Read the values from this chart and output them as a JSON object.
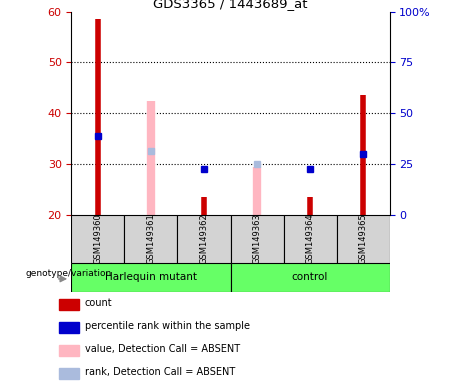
{
  "title": "GDS3365 / 1443689_at",
  "samples": [
    "GSM149360",
    "GSM149361",
    "GSM149362",
    "GSM149363",
    "GSM149364",
    "GSM149365"
  ],
  "ylim_left": [
    20,
    60
  ],
  "ylim_right": [
    0,
    100
  ],
  "yticks_left": [
    20,
    30,
    40,
    50,
    60
  ],
  "yticks_right": [
    0,
    25,
    50,
    75,
    100
  ],
  "yticklabels_right": [
    "0",
    "25",
    "50",
    "75",
    "100%"
  ],
  "count_values": [
    58.5,
    null,
    23.5,
    null,
    23.5,
    43.5
  ],
  "rank_values": [
    35.5,
    null,
    29.0,
    null,
    29.0,
    32.0
  ],
  "absent_value_bars": [
    null,
    [
      20,
      42.5
    ],
    null,
    [
      20,
      29.5
    ],
    null,
    null
  ],
  "absent_rank_bars": [
    null,
    [
      32.5,
      33.2
    ],
    null,
    [
      30.1,
      30.7
    ],
    null,
    null
  ],
  "red_color": "#CC0000",
  "blue_color": "#0000CC",
  "pink_color": "#FFB6C1",
  "light_blue_color": "#AABBDD",
  "red_bar_width": 4.0,
  "pink_bar_width": 6.0,
  "background_color": "#FFFFFF",
  "axis_label_color_left": "#CC0000",
  "axis_label_color_right": "#0000CC",
  "sample_box_color": "#D3D3D3",
  "group_color": "#66FF66",
  "legend_items": [
    {
      "label": "count",
      "color": "#CC0000"
    },
    {
      "label": "percentile rank within the sample",
      "color": "#0000CC"
    },
    {
      "label": "value, Detection Call = ABSENT",
      "color": "#FFB6C1"
    },
    {
      "label": "rank, Detection Call = ABSENT",
      "color": "#AABBDD"
    }
  ],
  "genotype_label": "genotype/variation",
  "harlequin_label": "Harlequin mutant",
  "control_label": "control"
}
